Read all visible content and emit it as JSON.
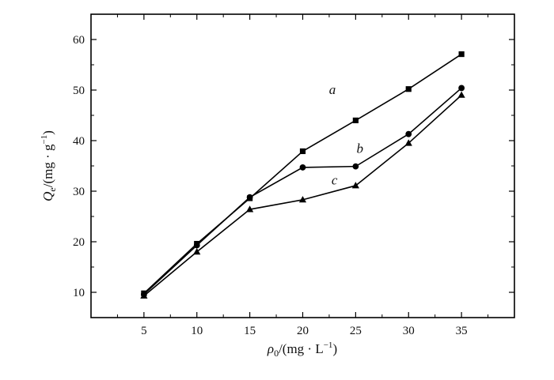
{
  "chart_data": {
    "type": "line",
    "xlabel": "ρ0/(mg · L−1)",
    "ylabel": "Qe/(mg · g−1)",
    "x": [
      5,
      10,
      15,
      20,
      25,
      30,
      35
    ],
    "xlim": [
      0,
      40
    ],
    "ylim": [
      5,
      65
    ],
    "xticks": [
      5,
      10,
      15,
      20,
      25,
      30,
      35
    ],
    "yticks": [
      10,
      20,
      30,
      40,
      50,
      60
    ],
    "grid": false,
    "legend": "none",
    "series": [
      {
        "name": "a",
        "marker": "square",
        "color": "#000000",
        "values": [
          9.8,
          19.6,
          28.6,
          37.9,
          44.0,
          50.2,
          57.1
        ]
      },
      {
        "name": "b",
        "marker": "circle",
        "color": "#000000",
        "values": [
          9.6,
          19.3,
          28.8,
          34.7,
          34.9,
          41.3,
          50.4
        ]
      },
      {
        "name": "c",
        "marker": "triangle",
        "color": "#000000",
        "values": [
          9.3,
          18.0,
          26.4,
          28.3,
          31.1,
          39.5,
          49.0
        ]
      }
    ]
  }
}
